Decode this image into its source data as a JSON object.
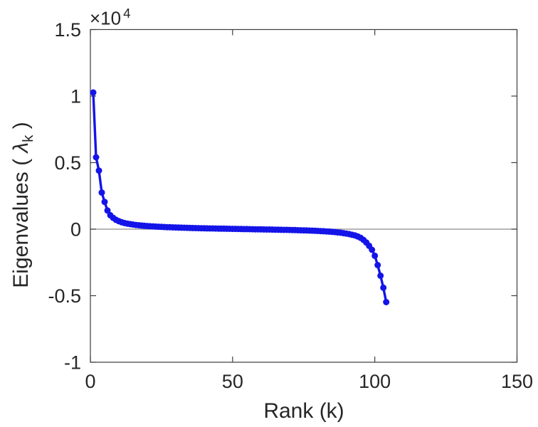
{
  "figure": {
    "background": "#ffffff"
  },
  "chart_data": {
    "type": "line",
    "xlabel": "Rank (k)",
    "ylabel_prefix": "Eigenvalues ( ",
    "ylabel_lambda": "λ",
    "ylabel_subscript": "k",
    "ylabel_suffix": " )",
    "y_scale_label": "×10",
    "y_scale_exponent": "4",
    "xlim": [
      0,
      150
    ],
    "ylim": [
      -10000,
      15000
    ],
    "x_ticks": [
      0,
      50,
      100,
      150
    ],
    "x_tick_labels": [
      "0",
      "50",
      "100",
      "150"
    ],
    "y_ticks": [
      -10000,
      -5000,
      0,
      5000,
      10000,
      15000
    ],
    "y_tick_labels": [
      "-1",
      "-0.5",
      "0",
      "0.5",
      "1",
      "1.5"
    ],
    "grid": false,
    "legend": null,
    "zero_line": true,
    "box": true,
    "axis_color": "#3d3d3d",
    "zero_line_color": "#8c8c8c",
    "text_color": "#262626",
    "series": [
      {
        "name": "eigenvalues",
        "color": "#1414e8",
        "marker": "circle",
        "marker_radius": 4.5,
        "line_width": 3.4,
        "x_start": 1,
        "x_step": 1,
        "values": [
          10270,
          5400,
          4400,
          2750,
          2050,
          1400,
          1050,
          850,
          700,
          600,
          520,
          460,
          415,
          378,
          346,
          318,
          293,
          271,
          252,
          235,
          220,
          206,
          193,
          181,
          170,
          160,
          151,
          142,
          134,
          126,
          119,
          112,
          105,
          99,
          93,
          87,
          81,
          76,
          71,
          66,
          61,
          56,
          51,
          47,
          43,
          39,
          35,
          31,
          27,
          23,
          19,
          15,
          11,
          7,
          3,
          -1,
          -5,
          -9,
          -13,
          -17,
          -21,
          -25,
          -29,
          -33,
          -37,
          -41,
          -46,
          -51,
          -56,
          -61,
          -66,
          -72,
          -78,
          -84,
          -91,
          -98,
          -106,
          -114,
          -123,
          -133,
          -144,
          -156,
          -169,
          -184,
          -201,
          -221,
          -244,
          -270,
          -298,
          -330,
          -370,
          -420,
          -470,
          -550,
          -650,
          -800,
          -1000,
          -1250,
          -1550,
          -2000,
          -2700,
          -3500,
          -4400,
          -5480
        ]
      }
    ]
  }
}
